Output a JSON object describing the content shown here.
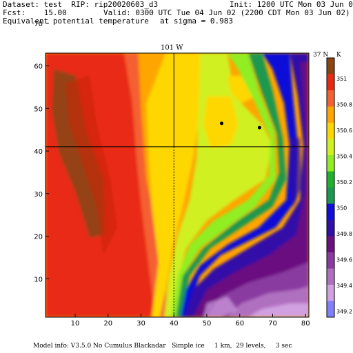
{
  "header": {
    "dataset_line": "Dataset: test  RIP: rip20020603_d3",
    "init_line": "Init: 1200 UTC Mon 03 Jun 02",
    "fcst_line": "Fcst:    15.00",
    "valid_line": "Valid: 0300 UTC Tue 04 Jun 02 (2200 CDT Mon 03 Jun 02)",
    "field_line": "Equivalent potential temperature",
    "sigma_line": "at sigma = 0.983"
  },
  "map": {
    "longitude_label": "101 W",
    "latitude_label": "37 N",
    "x_ticks": [
      "10",
      "20",
      "30",
      "40",
      "50",
      "60",
      "70",
      "80"
    ],
    "y_ticks": [
      "10",
      "20",
      "30",
      "40",
      "50",
      "60",
      "70"
    ],
    "x_range": [
      1,
      81
    ],
    "y_range": [
      1,
      63
    ],
    "meridian_x": 40,
    "parallel_y": 41,
    "markers": [
      {
        "x": 54.5,
        "y": 46.5
      },
      {
        "x": 66,
        "y": 45.5
      }
    ]
  },
  "legend": {
    "unit": "K",
    "levels": [
      "351",
      "350.8",
      "350.6",
      "350.4",
      "350.2",
      "350",
      "349.8",
      "349.6",
      "349.4",
      "349.2"
    ],
    "colors": [
      "#8b4513",
      "#e82a12",
      "#f46030",
      "#ffa500",
      "#ffd700",
      "#d0f020",
      "#90ee20",
      "#20b030",
      "#1a9850",
      "#1010d8",
      "#3010a8",
      "#6a1080",
      "#8a3aa0",
      "#b070c0",
      "#d0a0e0",
      "#8080ff"
    ]
  },
  "footer": {
    "model_info": "Model info: V3.5.0 No Cumulus Blackadar   Simple ice     1 km,  29 levels,     3 sec"
  }
}
